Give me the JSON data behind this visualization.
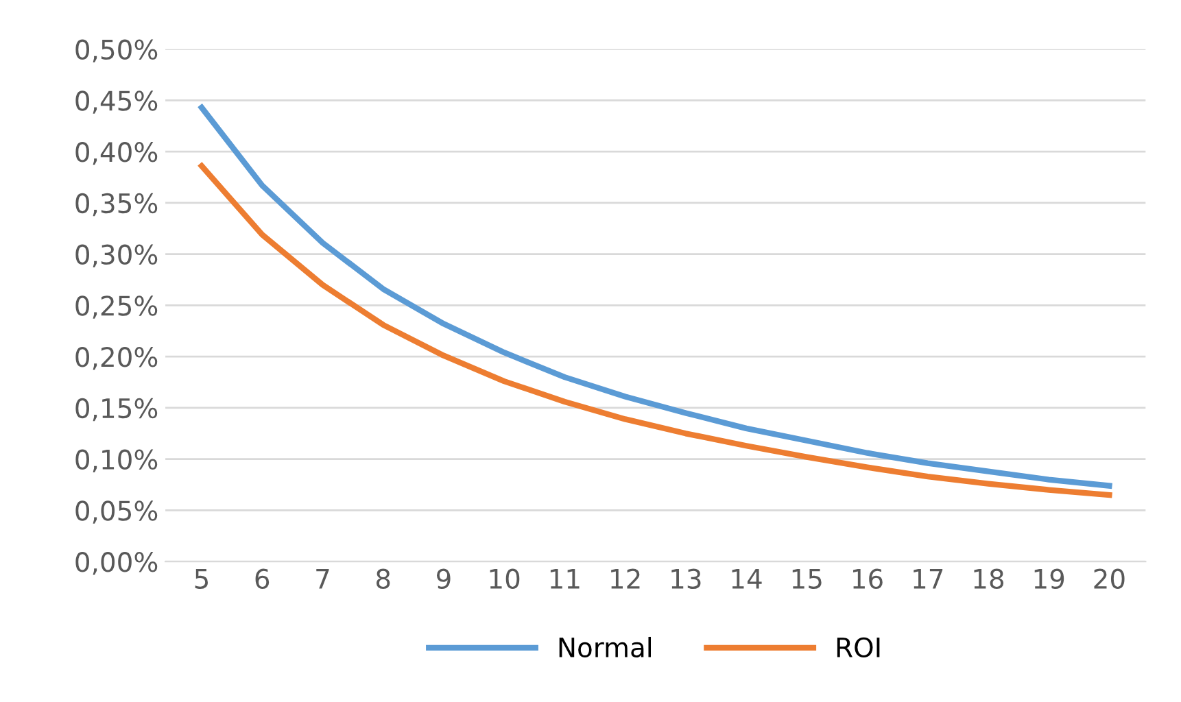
{
  "chart_data": {
    "type": "line",
    "categories": [
      "5",
      "6",
      "7",
      "8",
      "9",
      "10",
      "11",
      "12",
      "13",
      "14",
      "15",
      "16",
      "17",
      "18",
      "19",
      "20"
    ],
    "series": [
      {
        "name": "Normal",
        "color": "#5b9bd5",
        "values": [
          0.443,
          0.367,
          0.311,
          0.266,
          0.232,
          0.204,
          0.18,
          0.161,
          0.145,
          0.13,
          0.118,
          0.106,
          0.096,
          0.088,
          0.08,
          0.074
        ]
      },
      {
        "name": "ROI",
        "color": "#ed7d31",
        "values": [
          0.386,
          0.319,
          0.27,
          0.231,
          0.201,
          0.176,
          0.156,
          0.139,
          0.125,
          0.113,
          0.102,
          0.092,
          0.083,
          0.076,
          0.07,
          0.065
        ]
      }
    ],
    "ylim": [
      0,
      0.5
    ],
    "yticks": [
      {
        "value": 0,
        "label": "0,00%"
      },
      {
        "value": 0.05,
        "label": "0,05%"
      },
      {
        "value": 0.1,
        "label": "0,10%"
      },
      {
        "value": 0.15,
        "label": "0,15%"
      },
      {
        "value": 0.2,
        "label": "0,20%"
      },
      {
        "value": 0.25,
        "label": "0,25%"
      },
      {
        "value": 0.3,
        "label": "0,30%"
      },
      {
        "value": 0.35,
        "label": "0,35%"
      },
      {
        "value": 0.4,
        "label": "0,40%"
      },
      {
        "value": 0.45,
        "label": "0,45%"
      },
      {
        "value": 0.5,
        "label": "0,50%"
      }
    ],
    "grid": "y",
    "legend": "bottom",
    "marker": "none",
    "line_style": "solid"
  }
}
